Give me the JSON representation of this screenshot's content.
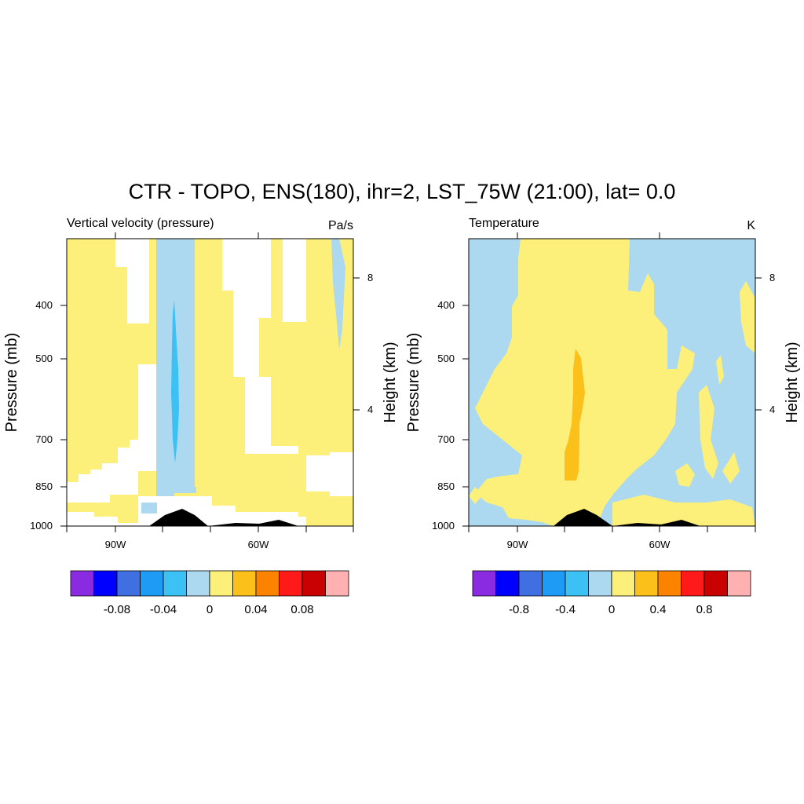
{
  "title": "CTR - TOPO, ENS(180), ihr=2, LST_75W (21:00), lat=  0.0",
  "colors": {
    "palette": [
      "#8a2be2",
      "#0000ff",
      "#3f6fe0",
      "#1e9bf5",
      "#3cc1f5",
      "#acd9ef",
      "#fdf07a",
      "#fcc01a",
      "#fb8300",
      "#ff1a1a",
      "#c80000",
      "#ffb0b0"
    ],
    "missing": "#ffffff",
    "topography": "#000000"
  },
  "chart_data": [
    {
      "type": "heatmap",
      "id": "left",
      "left_title": "Vertical velocity (pressure)",
      "units": "Pa/s",
      "ylabel": "Pressure (mb)",
      "ylabel_right": "Height (km)",
      "yticks": [
        "400",
        "500",
        "700",
        "850",
        "1000"
      ],
      "ytick_values": [
        400,
        500,
        700,
        850,
        1000
      ],
      "height_ticks": [
        "8",
        "4"
      ],
      "height_tick_values": [
        8,
        4
      ],
      "xticks": [
        "90W",
        "60W"
      ],
      "xtick_values": [
        -90,
        -60
      ],
      "xlim": [
        -100,
        -40
      ],
      "ylim_pressure": [
        1000,
        250
      ],
      "colorbar": {
        "labels": [
          "-0.08",
          "-0.04",
          "0",
          "0.04",
          "0.08"
        ],
        "levels": [
          -0.1,
          -0.08,
          -0.06,
          -0.04,
          -0.02,
          0,
          0.02,
          0.04,
          0.06,
          0.08,
          0.1
        ]
      },
      "fields": [
        {
          "value_sign": "positive",
          "color_index": 6,
          "region_lon": [
            -100,
            -40
          ],
          "region_p": [
            250,
            1000
          ]
        },
        {
          "value_sign": "negative",
          "color_index": 5,
          "region_lon": [
            -82,
            -74
          ],
          "region_p": [
            250,
            960
          ]
        },
        {
          "value_sign": "negative",
          "color_index": 4,
          "region_lon": [
            -78.5,
            -77.5
          ],
          "region_p": [
            390,
            720
          ]
        }
      ]
    },
    {
      "type": "heatmap",
      "id": "right",
      "left_title": "Temperature",
      "units": "K",
      "ylabel": "Pressure (mb)",
      "ylabel_right": "Height (km)",
      "yticks": [
        "400",
        "500",
        "700",
        "850",
        "1000"
      ],
      "ytick_values": [
        400,
        500,
        700,
        850,
        1000
      ],
      "height_ticks": [
        "8",
        "4"
      ],
      "height_tick_values": [
        8,
        4
      ],
      "xticks": [
        "90W",
        "60W"
      ],
      "xtick_values": [
        -90,
        -60
      ],
      "xlim": [
        -100,
        -40
      ],
      "ylim_pressure": [
        1000,
        250
      ],
      "colorbar": {
        "labels": [
          "-0.8",
          "-0.4",
          "0",
          "0.4",
          "0.8"
        ],
        "levels": [
          -1.0,
          -0.8,
          -0.6,
          -0.4,
          -0.2,
          0,
          0.2,
          0.4,
          0.6,
          0.8,
          1.0
        ]
      },
      "fields": [
        {
          "value_sign": "negative",
          "color_index": 5,
          "region_lon": [
            -100,
            -40
          ],
          "region_p": [
            250,
            1000
          ]
        },
        {
          "value_sign": "positive",
          "color_index": 6,
          "region_lon": [
            -93,
            -63
          ],
          "region_p": [
            250,
            1000
          ]
        },
        {
          "value_sign": "positive",
          "color_index": 7,
          "region_lon": [
            -79,
            -76
          ],
          "region_p": [
            480,
            880
          ]
        }
      ]
    }
  ]
}
